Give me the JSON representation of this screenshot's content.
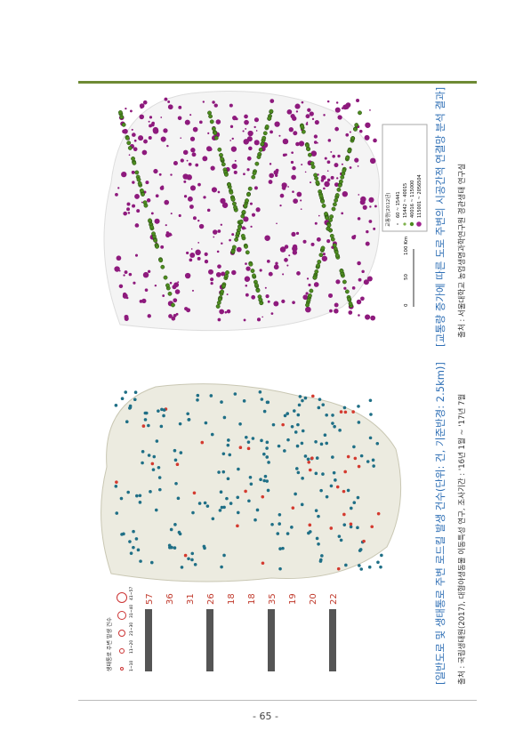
{
  "page_number": "- 65 -",
  "left_figure": {
    "caption": "[일반도로 및 생태통로 주변 로드킬 발생 건수(단위: 건, 기준반경: 2.5km)]",
    "source": "출처 : 국립생태원(2017), 대형야생동물 이동특성 연구, 조사기간 : '16년 1월 ~ '17년 7월",
    "legend_title": "생태통로 주변 발생 건수",
    "legend_items": [
      "1~10",
      "11~20",
      "21~30",
      "31~40",
      "41~57"
    ],
    "counts": [
      "57",
      "36",
      "31",
      "26",
      "18",
      "18",
      "35",
      "19",
      "20",
      "22"
    ]
  },
  "right_figure": {
    "caption": "[교통량 증가에 따른 도로 주변의 시공간적 연결망 분석 결과]",
    "source": "출처 : 서울대학교 농업생명과학연구원 경관생태 연구실",
    "legend_title": "교통량(2012년)",
    "legend_items": [
      "60 ~ 15441",
      "15442 ~ 40015",
      "40016 ~ 115000",
      "115001 ~ 2056504"
    ],
    "scale": [
      "0",
      "50",
      "100 Km"
    ]
  }
}
